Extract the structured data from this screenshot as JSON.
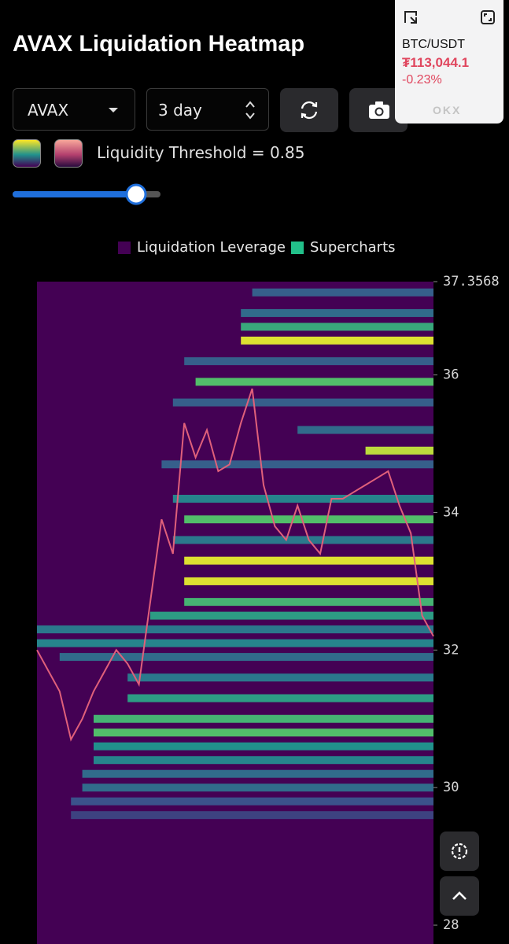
{
  "header": {
    "title": "AVAX Liquidation Heatmap"
  },
  "controls": {
    "symbol": "AVAX",
    "period": "3 day",
    "threshold_label": "Liquidity Threshold = 0.85"
  },
  "ticker_widget": {
    "pair": "BTC/USDT",
    "price": "₮113,044.1",
    "change": "-0.23%",
    "exchange": "OKX"
  },
  "chart_data": {
    "type": "heatmap",
    "legend": [
      {
        "name": "Liquidation Leverage",
        "color": "#440154"
      },
      {
        "name": "Supercharts",
        "color": "#22c08a"
      }
    ],
    "ylim": [
      27.726,
      37.3568
    ],
    "yticks": [
      37.3568,
      36,
      34,
      32,
      30,
      28
    ],
    "background": "#440154",
    "price_color": "#e0607a",
    "price": [
      32.0,
      31.7,
      31.4,
      30.7,
      31.0,
      31.4,
      31.7,
      32.0,
      31.8,
      31.5,
      32.7,
      33.9,
      33.4,
      35.3,
      34.8,
      35.2,
      34.6,
      34.7,
      35.3,
      35.8,
      34.4,
      33.8,
      33.6,
      34.1,
      33.6,
      33.4,
      34.2,
      34.2,
      34.3,
      34.4,
      34.5,
      34.6,
      34.1,
      33.7,
      32.5,
      32.2
    ],
    "bands": [
      {
        "price": 37.2,
        "from": 19,
        "intensity": 0.3
      },
      {
        "price": 36.9,
        "from": 18,
        "intensity": 0.35
      },
      {
        "price": 36.7,
        "from": 18,
        "intensity": 0.6
      },
      {
        "price": 36.5,
        "from": 18,
        "intensity": 0.95
      },
      {
        "price": 36.2,
        "from": 13,
        "intensity": 0.3
      },
      {
        "price": 35.9,
        "from": 14,
        "intensity": 0.7
      },
      {
        "price": 35.6,
        "from": 12,
        "intensity": 0.3
      },
      {
        "price": 35.2,
        "from": 23,
        "intensity": 0.35
      },
      {
        "price": 34.9,
        "from": 29,
        "intensity": 0.9
      },
      {
        "price": 34.7,
        "from": 11,
        "intensity": 0.3
      },
      {
        "price": 34.2,
        "from": 12,
        "intensity": 0.45
      },
      {
        "price": 33.9,
        "from": 13,
        "intensity": 0.7
      },
      {
        "price": 33.6,
        "from": 12,
        "intensity": 0.4
      },
      {
        "price": 33.3,
        "from": 13,
        "intensity": 0.95
      },
      {
        "price": 33.0,
        "from": 13,
        "intensity": 0.95
      },
      {
        "price": 32.7,
        "from": 13,
        "intensity": 0.65
      },
      {
        "price": 32.5,
        "from": 10,
        "intensity": 0.55
      },
      {
        "price": 32.3,
        "from": 0,
        "intensity": 0.4
      },
      {
        "price": 32.1,
        "from": 0,
        "intensity": 0.45
      },
      {
        "price": 31.9,
        "from": 2,
        "intensity": 0.35
      },
      {
        "price": 31.6,
        "from": 8,
        "intensity": 0.4
      },
      {
        "price": 31.3,
        "from": 8,
        "intensity": 0.55
      },
      {
        "price": 31.0,
        "from": 5,
        "intensity": 0.65
      },
      {
        "price": 30.8,
        "from": 5,
        "intensity": 0.7
      },
      {
        "price": 30.6,
        "from": 5,
        "intensity": 0.5
      },
      {
        "price": 30.4,
        "from": 5,
        "intensity": 0.45
      },
      {
        "price": 30.2,
        "from": 4,
        "intensity": 0.35
      },
      {
        "price": 30.0,
        "from": 4,
        "intensity": 0.35
      },
      {
        "price": 29.8,
        "from": 3,
        "intensity": 0.25
      },
      {
        "price": 29.6,
        "from": 3,
        "intensity": 0.2
      }
    ]
  }
}
